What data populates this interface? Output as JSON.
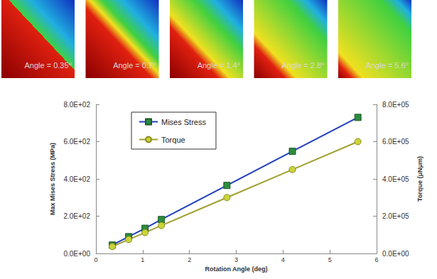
{
  "chart_data": {
    "type": "line",
    "panels": [
      "Angle = 0.35⁰",
      "Angle = 0.7⁰",
      "Angle = 1.4⁰",
      "Angle = 2.8⁰",
      "Angle = 5.6⁰"
    ],
    "x_label": "Rotation Angle (deg)",
    "y_label": "Max Mises Stress (MPa)",
    "y2_label": "Torque (μNμm)",
    "x": [
      0.35,
      0.7,
      1.05,
      1.4,
      2.8,
      4.2,
      5.6
    ],
    "series": [
      {
        "name": "Mises Stress",
        "color": "#1f3fbf",
        "marker": "square",
        "line_style": "solid",
        "values": [
          45,
          90,
          135,
          182,
          365,
          548,
          730
        ]
      },
      {
        "name": "Torque",
        "color": "#a0a030",
        "marker": "circle",
        "line_style": "solid",
        "axis": "y2",
        "values": [
          37000,
          75000,
          112000,
          150000,
          300000,
          450000,
          600000
        ]
      }
    ],
    "xlim": [
      0,
      6
    ],
    "xticks": [
      0,
      1,
      2,
      3,
      4,
      5,
      6
    ],
    "ylim": [
      0,
      800
    ],
    "yticks": [
      {
        "value": 0,
        "label": "0.0E+00"
      },
      {
        "value": 200,
        "label": "2.0E+02"
      },
      {
        "value": 400,
        "label": "4.0E+02"
      },
      {
        "value": 600,
        "label": "6.0E+02"
      },
      {
        "value": 800,
        "label": "8.0E+02"
      }
    ],
    "y2lim": [
      0,
      800000
    ],
    "y2ticks": [
      {
        "value": 0,
        "label": "0.0E+00"
      },
      {
        "value": 200000,
        "label": "2.0E+05"
      },
      {
        "value": 400000,
        "label": "4.0E+05"
      },
      {
        "value": 600000,
        "label": "6.0E+05"
      },
      {
        "value": 800000,
        "label": "8.0E+05"
      }
    ],
    "grid": false,
    "legend": "upper left"
  }
}
